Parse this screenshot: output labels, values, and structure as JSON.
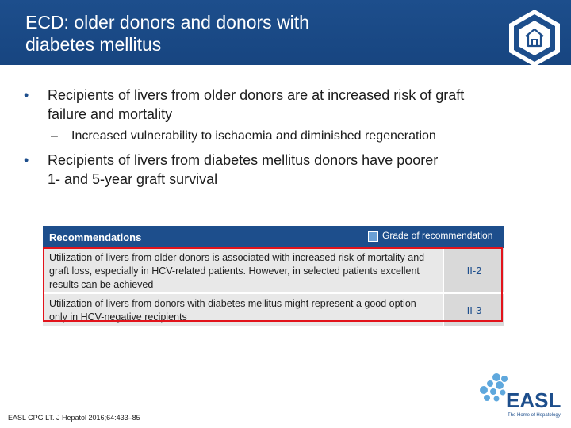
{
  "slide": {
    "title_line1": "ECD: older donors and donors with",
    "title_line2": "diabetes mellitus",
    "home_icon": "home-icon"
  },
  "bullets": [
    {
      "text_line1": "Recipients of livers from older donors are at increased risk of graft",
      "text_line2": "failure and mortality",
      "sub": "Increased vulnerability to ischaemia and diminished regeneration"
    },
    {
      "text_line1": "Recipients of livers from diabetes mellitus donors have poorer",
      "text_line2": "1- and 5-year graft survival"
    }
  ],
  "recommendations": {
    "header": "Recommendations",
    "grade_label": "Grade of recommendation",
    "rows": [
      {
        "text": "Utilization of livers from older donors is associated with increased risk of mortality and graft loss, especially in HCV-related patients. However, in selected patients excellent results can be achieved",
        "grade": "II-2"
      },
      {
        "text": "Utilization of livers from donors with diabetes mellitus might represent a good option only in HCV-negative recipients",
        "grade": "II-3"
      }
    ]
  },
  "footer": {
    "citation": "EASL CPG LT. J Hepatol 2016;64:433–85"
  },
  "logo": {
    "name": "EASL",
    "tagline": "The Home of Hepatology"
  },
  "colors": {
    "brand_blue": "#1d4e8c",
    "highlight_red": "#e2131b",
    "logo_light_blue": "#5fa8dd"
  }
}
